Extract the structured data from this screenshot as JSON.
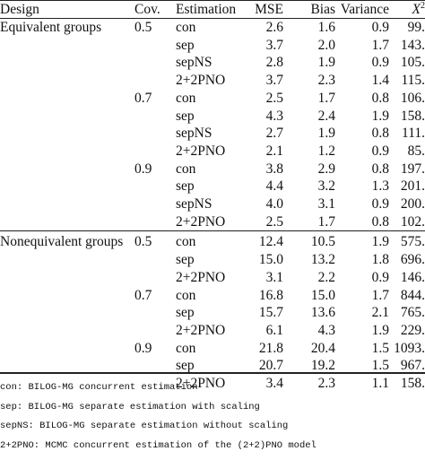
{
  "table": {
    "headers": {
      "design": "Design",
      "cov": "Cov.",
      "estimation": "Estimation",
      "mse": "MSE",
      "bias": "Bias",
      "variance": "Variance",
      "x2_symbol": "X",
      "x2_superscript": "2"
    },
    "equivalent": {
      "design": "Equivalent groups",
      "rows": [
        {
          "cov": "0.5",
          "est": "con",
          "mse": "2.6",
          "bias": "1.6",
          "var": "0.9",
          "x2": "99."
        },
        {
          "cov": "",
          "est": "sep",
          "mse": "3.7",
          "bias": "2.0",
          "var": "1.7",
          "x2": "143."
        },
        {
          "cov": "",
          "est": "sepNS",
          "mse": "2.8",
          "bias": "1.9",
          "var": "0.9",
          "x2": "105."
        },
        {
          "cov": "",
          "est": "2+2PNO",
          "mse": "3.7",
          "bias": "2.3",
          "var": "1.4",
          "x2": "115."
        },
        {
          "cov": "0.7",
          "est": "con",
          "mse": "2.5",
          "bias": "1.7",
          "var": "0.8",
          "x2": "106."
        },
        {
          "cov": "",
          "est": "sep",
          "mse": "4.3",
          "bias": "2.4",
          "var": "1.9",
          "x2": "158."
        },
        {
          "cov": "",
          "est": "sepNS",
          "mse": "2.7",
          "bias": "1.9",
          "var": "0.8",
          "x2": "111."
        },
        {
          "cov": "",
          "est": "2+2PNO",
          "mse": "2.1",
          "bias": "1.2",
          "var": "0.9",
          "x2": "85."
        },
        {
          "cov": "0.9",
          "est": "con",
          "mse": "3.8",
          "bias": "2.9",
          "var": "0.8",
          "x2": "197."
        },
        {
          "cov": "",
          "est": "sep",
          "mse": "4.4",
          "bias": "3.2",
          "var": "1.3",
          "x2": "201."
        },
        {
          "cov": "",
          "est": "sepNS",
          "mse": "4.0",
          "bias": "3.1",
          "var": "0.9",
          "x2": "200."
        },
        {
          "cov": "",
          "est": "2+2PNO",
          "mse": "2.5",
          "bias": "1.7",
          "var": "0.8",
          "x2": "102."
        }
      ]
    },
    "nonequivalent": {
      "design": "Nonequivalent groups",
      "rows": [
        {
          "cov": "0.5",
          "est": "con",
          "mse": "12.4",
          "bias": "10.5",
          "var": "1.9",
          "x2": "575."
        },
        {
          "cov": "",
          "est": "sep",
          "mse": "15.0",
          "bias": "13.2",
          "var": "1.8",
          "x2": "696."
        },
        {
          "cov": "",
          "est": "2+2PNO",
          "mse": "3.1",
          "bias": "2.2",
          "var": "0.9",
          "x2": "146."
        },
        {
          "cov": "0.7",
          "est": "con",
          "mse": "16.8",
          "bias": "15.0",
          "var": "1.7",
          "x2": "844."
        },
        {
          "cov": "",
          "est": "sep",
          "mse": "15.7",
          "bias": "13.6",
          "var": "2.1",
          "x2": "765."
        },
        {
          "cov": "",
          "est": "2+2PNO",
          "mse": "6.1",
          "bias": "4.3",
          "var": "1.9",
          "x2": "229."
        },
        {
          "cov": "0.9",
          "est": "con",
          "mse": "21.8",
          "bias": "20.4",
          "var": "1.5",
          "x2": "1093."
        },
        {
          "cov": "",
          "est": "sep",
          "mse": "20.7",
          "bias": "19.2",
          "var": "1.5",
          "x2": "967."
        },
        {
          "cov": "",
          "est": "2+2PNO",
          "mse": "3.4",
          "bias": "2.3",
          "var": "1.1",
          "x2": "158."
        }
      ]
    }
  },
  "notes": [
    "con: BILOG-MG concurrent estimation",
    "sep: BILOG-MG separate estimation with scaling",
    "sepNS: BILOG-MG separate estimation without scaling",
    "2+2PNO: MCMC concurrent estimation of the (2+2)PNO model"
  ]
}
